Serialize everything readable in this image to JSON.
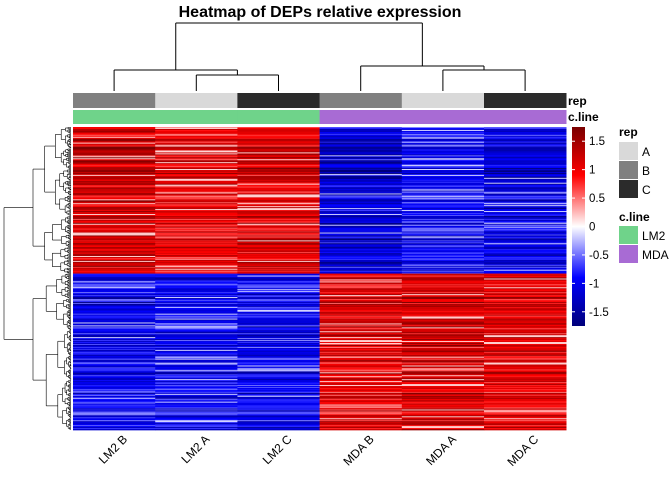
{
  "chart_data": {
    "type": "heatmap",
    "title": "Heatmap of DEPs relative expression",
    "columns": [
      "LM2 B",
      "LM2 A",
      "LM2 C",
      "MDA B",
      "MDA A",
      "MDA C"
    ],
    "annotations": {
      "rep": {
        "label": "rep",
        "values": [
          "B",
          "A",
          "C",
          "B",
          "A",
          "C"
        ],
        "legend_title": "rep",
        "levels": [
          "A",
          "B",
          "C"
        ],
        "colors": {
          "A": "#d9d9d9",
          "B": "#808080",
          "C": "#2b2b2b"
        }
      },
      "c_line": {
        "label": "c.line",
        "values": [
          "LM2",
          "LM2",
          "LM2",
          "MDA",
          "MDA",
          "MDA"
        ],
        "legend_title": "c.line",
        "levels": [
          "LM2",
          "MDA"
        ],
        "colors": {
          "LM2": "#6fd38a",
          "MDA": "#a86bd4"
        }
      }
    },
    "colorbar": {
      "ticks": [
        1.5,
        1,
        0.5,
        0,
        -0.5,
        -1,
        -1.5
      ],
      "tick_labels": [
        "1.5",
        "1",
        "0.5",
        "0",
        "-0.5",
        "-1",
        "-1.5"
      ],
      "range": [
        -1.75,
        1.75
      ],
      "colors": {
        "low": "#00007a",
        "mid_low": "#0000ff",
        "zero": "#ffffff",
        "mid_high": "#ff0000",
        "high": "#7a0000"
      }
    },
    "row_clusters": [
      {
        "name": "",
        "n_rows": 150,
        "column_means": [
          1.2,
          1.0,
          1.1,
          -1.2,
          -0.9,
          -1.1
        ]
      },
      {
        "name": "",
        "n_rows": 160,
        "column_means": [
          -1.0,
          -1.0,
          -1.0,
          1.1,
          1.2,
          1.1
        ]
      }
    ],
    "column_dendrogram": {
      "groups": [
        [
          "LM2 B",
          [
            "LM2 A",
            "LM2 C"
          ]
        ],
        [
          "MDA B",
          [
            "MDA A",
            "MDA C"
          ]
        ]
      ]
    },
    "grid": false,
    "legend_placement": "right"
  }
}
